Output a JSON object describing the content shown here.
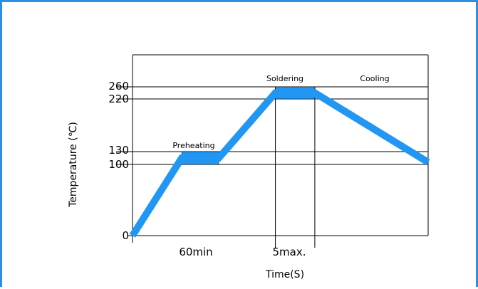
{
  "chart_data": {
    "type": "line",
    "title": "",
    "xlabel": "Time(S)",
    "ylabel": "Temperature (℃)",
    "y_ticks": [
      0,
      100,
      130,
      220,
      260
    ],
    "x_tick_labels": [
      "60min",
      "5max."
    ],
    "stage_labels": [
      "Preheating",
      "Soldering",
      "Cooling"
    ],
    "profile_color": "#2196f3",
    "grid": false,
    "series": [
      {
        "name": "",
        "points": [
          {
            "x": 0,
            "y": 0
          },
          {
            "x": 20,
            "y": 115
          },
          {
            "x": 35,
            "y": 115
          },
          {
            "x": 58,
            "y": 240
          },
          {
            "x": 74,
            "y": 240
          },
          {
            "x": 120,
            "y": 105
          }
        ]
      }
    ],
    "bands": [
      {
        "label": "Preheating",
        "x": [
          20,
          35
        ],
        "y": [
          100,
          130
        ]
      },
      {
        "label": "Soldering",
        "x": [
          58,
          74
        ],
        "y": [
          220,
          260
        ]
      }
    ]
  }
}
